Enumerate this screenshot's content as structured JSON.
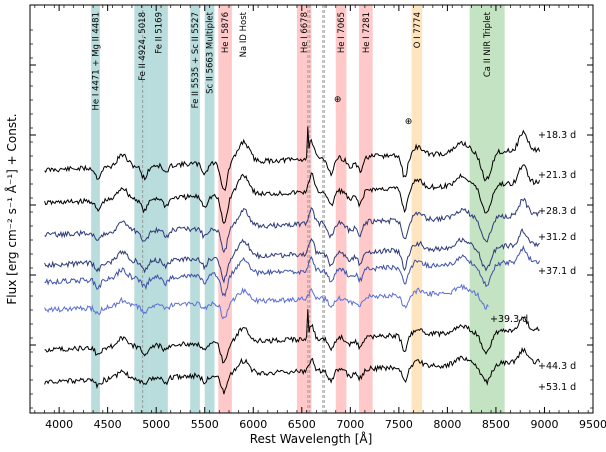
{
  "chart_data": {
    "type": "line",
    "xlabel": "Rest Wavelength [Å]",
    "ylabel": "Flux [erg cm⁻² s⁻¹ Å⁻¹] + Const.",
    "xlim": [
      3700,
      9500
    ],
    "xticks": [
      4000,
      4500,
      5000,
      5500,
      6000,
      6500,
      7000,
      7500,
      8000,
      8500,
      9000,
      9500
    ],
    "bands": [
      {
        "label": "He I 4471 + Mg II 4481",
        "x0": 4330,
        "x1": 4420,
        "color": "#b9dcdc"
      },
      {
        "label": "Fe II 4924, 5018",
        "x0": 4775,
        "x1": 4930,
        "color": "#b9dcdc"
      },
      {
        "label": "Fe II 5169",
        "x0": 4930,
        "x1": 5120,
        "color": "#b9dcdc"
      },
      {
        "label": "Fe II 5535 + Sc II 5527",
        "x0": 5350,
        "x1": 5450,
        "color": "#b9dcdc"
      },
      {
        "label": "Sc II 5663 Multiplet",
        "x0": 5500,
        "x1": 5600,
        "color": "#b9dcdc"
      },
      {
        "label": "He I 5876",
        "x0": 5640,
        "x1": 5780,
        "color": "#ffc9c9"
      },
      {
        "label": "Na ID Host",
        "x0": 5893,
        "x1": 5893,
        "color": "none"
      },
      {
        "label": "He I 6678",
        "x0": 6450,
        "x1": 6600,
        "color": "#ffc9c9"
      },
      {
        "label": "He I 7065",
        "x0": 6850,
        "x1": 6960,
        "color": "#ffc9c9"
      },
      {
        "label": "He I 7281",
        "x0": 7090,
        "x1": 7230,
        "color": "#ffc9c9"
      },
      {
        "label": "O I 7774",
        "x0": 7630,
        "x1": 7740,
        "color": "#ffe5bf"
      },
      {
        "label": "Ca II NIR Triplet",
        "x0": 8230,
        "x1": 8590,
        "color": "#c4e3c2"
      }
    ],
    "markers": [
      {
        "symbol": "⊕",
        "x": 6870,
        "y_level": 70
      },
      {
        "symbol": "⊕",
        "x": 7600,
        "y_level": 80
      }
    ],
    "series": [
      {
        "name": "+18.3 d",
        "color": "#000000"
      },
      {
        "name": "+21.3 d",
        "color": "#000000"
      },
      {
        "name": "+28.3 d",
        "color": "#2e3a78"
      },
      {
        "name": "+31.2 d",
        "color": "#2e3a78"
      },
      {
        "name": "+37.1 d",
        "color": "#3f51a8"
      },
      {
        "name": "+39.3 d",
        "color": "#5c70d6"
      },
      {
        "name": "+44.3 d",
        "color": "#000000"
      },
      {
        "name": "+53.1 d",
        "color": "#000000"
      }
    ]
  }
}
